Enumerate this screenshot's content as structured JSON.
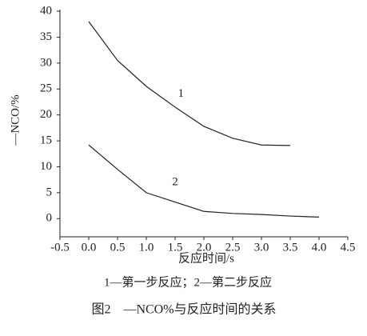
{
  "chart_data": {
    "type": "line",
    "xlabel": "反应时间/s",
    "ylabel": "—NCO/%",
    "note": "1—第一步反应；2—第二步反应",
    "caption": "图2　—NCO%与反应时间的关系",
    "series": [
      {
        "name": "1",
        "color": "#222222",
        "x": [
          0,
          0.5,
          1,
          1.5,
          2,
          2.5,
          3,
          3.5
        ],
        "values": [
          38,
          30.5,
          25.5,
          21.5,
          17.8,
          15.5,
          14.2,
          14.1
        ]
      },
      {
        "name": "2",
        "color": "#222222",
        "x": [
          0,
          0.5,
          1,
          1.5,
          2,
          2.5,
          3,
          3.5,
          4
        ],
        "values": [
          14.2,
          9.5,
          5,
          3.2,
          1.4,
          1,
          0.8,
          0.5,
          0.3
        ]
      }
    ],
    "xlim": [
      -0.5,
      4.5
    ],
    "xticks": [
      -0.5,
      {
        "value": 0,
        "label": "0.0"
      },
      0.5,
      {
        "value": 1,
        "label": "1.0"
      },
      1.5,
      {
        "value": 2,
        "label": "2.0"
      },
      2.5,
      {
        "value": 3,
        "label": "3.0"
      },
      3.5,
      {
        "value": 4,
        "label": "4.0"
      },
      4.5
    ],
    "ylim": [
      -3.5,
      40
    ],
    "yticks": [
      0,
      5,
      10,
      15,
      20,
      25,
      30,
      35,
      40
    ],
    "grid": false
  }
}
